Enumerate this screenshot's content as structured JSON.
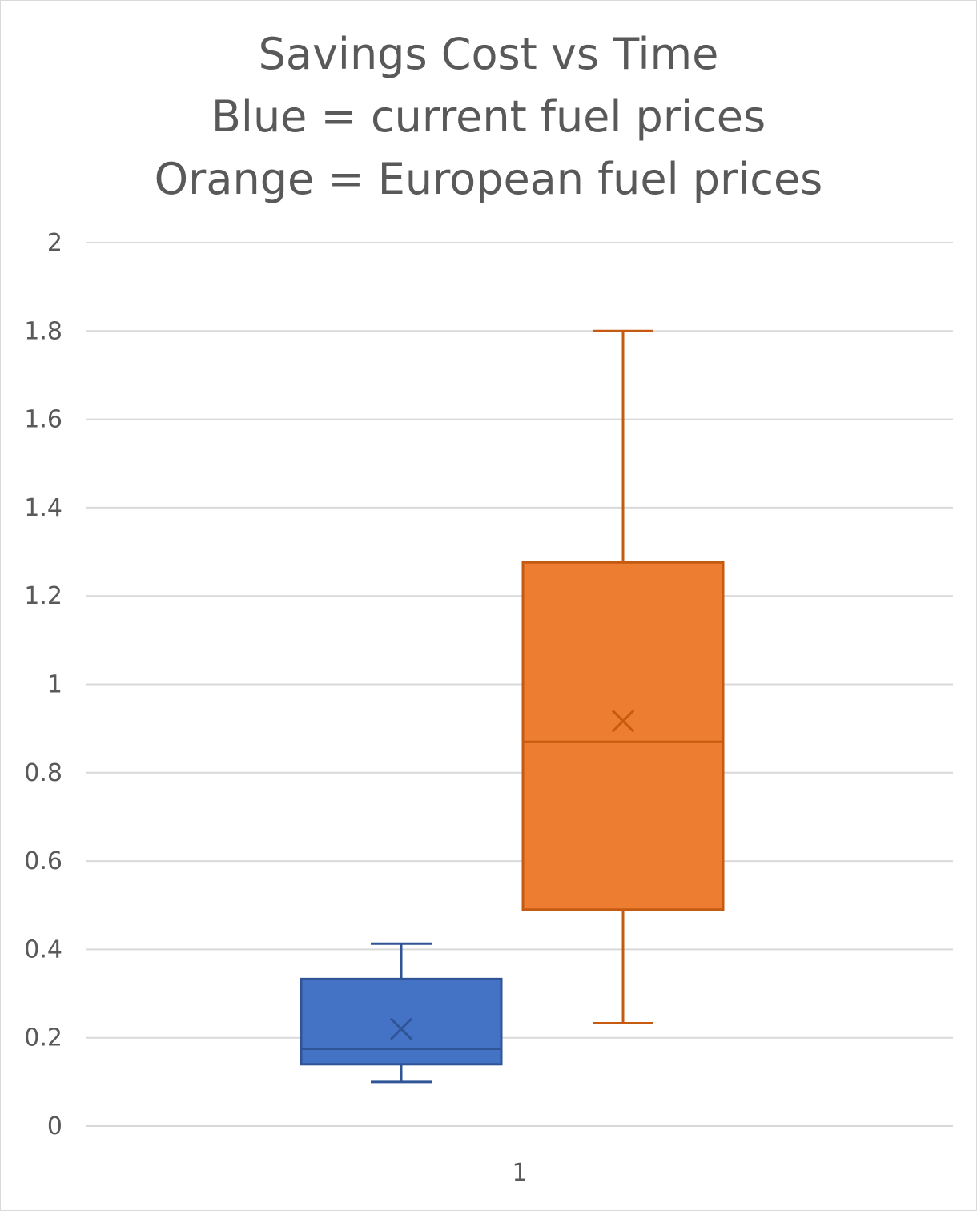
{
  "chart_data": {
    "type": "box",
    "title": [
      "Savings Cost vs Time",
      "Blue = current fuel prices",
      "Orange = European fuel prices"
    ],
    "categories": [
      "1"
    ],
    "ylim": [
      0,
      2
    ],
    "y_ticks": [
      "0",
      "0.2",
      "0.4",
      "0.6",
      "0.8",
      "1",
      "1.2",
      "1.4",
      "1.6",
      "1.8",
      "2"
    ],
    "grid": true,
    "series": [
      {
        "color": "#4472c4",
        "min": 0.1,
        "q1": 0.14,
        "median": 0.175,
        "q3": 0.333,
        "max": 0.413,
        "mean": 0.22
      },
      {
        "color": "#ed7d31",
        "min": 0.233,
        "q1": 0.49,
        "median": 0.87,
        "q3": 1.276,
        "max": 1.8,
        "mean": 0.917
      }
    ]
  }
}
